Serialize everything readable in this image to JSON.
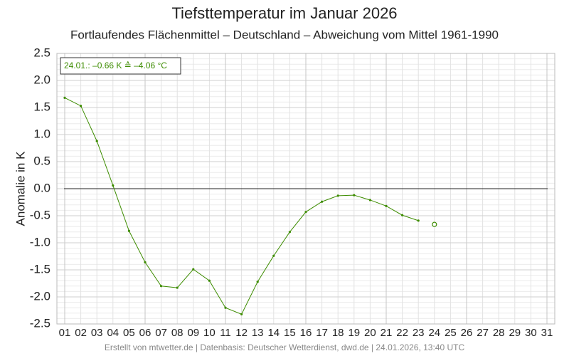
{
  "chart_data": {
    "type": "line",
    "title": "Tiefsttemperatur im Januar 2026",
    "subtitle": "Fortlaufendes Flächenmittel – Deutschland – Abweichung vom Mittel 1961-1990",
    "y_label": "Anomalie in K",
    "annotation": "24.01.: –0.66 K ≙ –4.06 °C",
    "footer": "Erstellt von mtwetter.de | Datenbasis: Deutscher Wetterdienst, dwd.de | 24.01.2026, 13:40 UTC",
    "categories": [
      "01",
      "02",
      "03",
      "04",
      "05",
      "06",
      "07",
      "08",
      "09",
      "10",
      "11",
      "12",
      "13",
      "14",
      "15",
      "16",
      "17",
      "18",
      "19",
      "20",
      "21",
      "22",
      "23",
      "24",
      "25",
      "26",
      "27",
      "28",
      "29",
      "30",
      "31"
    ],
    "values": [
      1.68,
      1.53,
      0.88,
      0.06,
      -0.78,
      -1.36,
      -1.8,
      -1.83,
      -1.49,
      -1.7,
      -2.2,
      -2.32,
      -1.72,
      -1.24,
      -0.8,
      -0.43,
      -0.24,
      -0.13,
      -0.12,
      -0.21,
      -0.32,
      -0.49,
      -0.59,
      null,
      null,
      null,
      null,
      null,
      null,
      null,
      null
    ],
    "marker_values": [
      null,
      null,
      null,
      null,
      null,
      null,
      null,
      null,
      null,
      null,
      null,
      null,
      null,
      null,
      null,
      null,
      null,
      null,
      null,
      null,
      null,
      null,
      null,
      -0.66,
      null,
      null,
      null,
      null,
      null,
      null,
      null
    ],
    "color": "#3d8c00",
    "ylim": [
      -2.5,
      2.5
    ],
    "yticks": [
      {
        "value": -2.5,
        "label": "-2.5"
      },
      {
        "value": -2,
        "label": "-2.0"
      },
      -1.5,
      {
        "value": -1,
        "label": "-1.0"
      },
      -0.5,
      {
        "value": 0,
        "label": "0.0"
      },
      0.5,
      {
        "value": 1,
        "label": "1.0"
      },
      1.5,
      {
        "value": 2,
        "label": "2.0"
      },
      2.5
    ],
    "grid": true
  }
}
